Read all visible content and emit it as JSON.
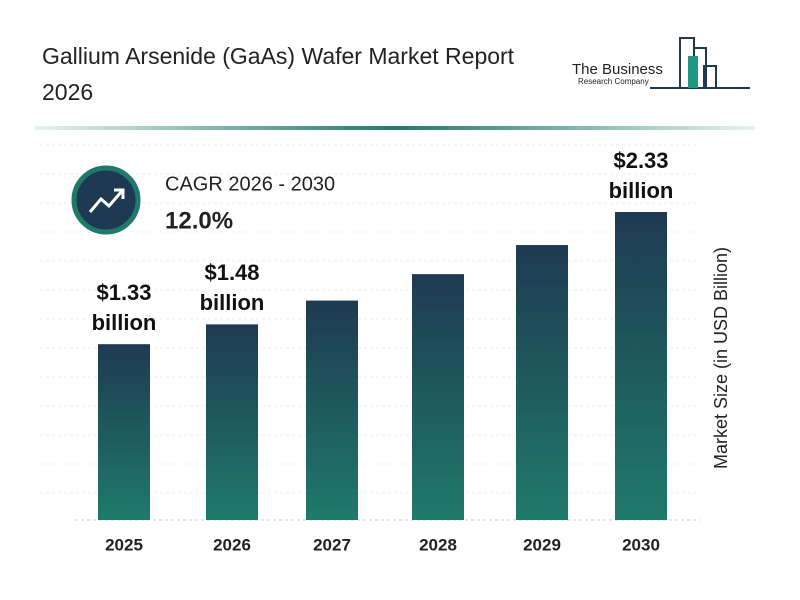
{
  "chart_data": {
    "type": "bar",
    "title": "Gallium Arsenide (GaAs) Wafer Market Report 2026",
    "logo_line1": "The Business",
    "logo_line2": "Research Company",
    "cagr_label": "CAGR 2026 - 2030",
    "cagr_value": "12.0%",
    "y_label": "Market Size (in USD Billion)",
    "categories": [
      "2025",
      "2026",
      "2027",
      "2028",
      "2029",
      "2030"
    ],
    "values": [
      1.33,
      1.48,
      1.66,
      1.86,
      2.08,
      2.33
    ],
    "value_labels": [
      "$1.33 billion",
      "$1.48 billion",
      null,
      null,
      null,
      "$2.33 billion"
    ],
    "color": "#1f7a6a",
    "color_top": "#1e3a52",
    "grid": true
  }
}
